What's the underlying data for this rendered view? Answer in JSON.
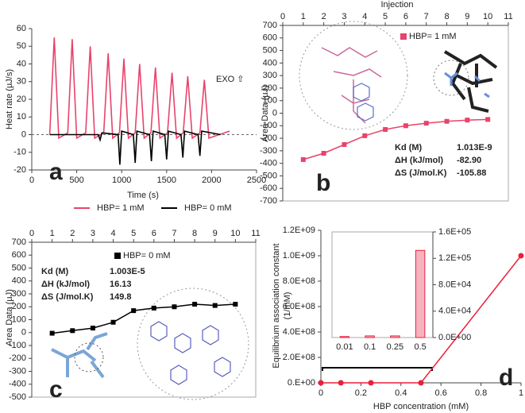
{
  "chart_data": [
    {
      "type": "line",
      "panel_label": "a",
      "x_label": "Time (s)",
      "y_label": "Heat rate (µJ/s)",
      "annotation": "EXO ⇧",
      "xlim": [
        0,
        2500
      ],
      "xticks": [
        0,
        500,
        1000,
        1500,
        2000,
        2500
      ],
      "ylim": [
        -20,
        60
      ],
      "yticks": [
        -20,
        -10,
        0,
        10,
        20,
        30,
        40,
        50,
        60
      ],
      "series": [
        {
          "name": "HBP= 1 mM",
          "color": "#e8436b",
          "x": [
            200,
            250,
            300,
            400,
            450,
            500,
            600,
            650,
            700,
            800,
            850,
            900,
            975,
            1025,
            1075,
            1150,
            1200,
            1250,
            1325,
            1375,
            1425,
            1510,
            1560,
            1610,
            1685,
            1735,
            1785,
            1870,
            1920,
            1970,
            2200
          ],
          "values": [
            0,
            55,
            -2,
            1,
            54,
            -2,
            1,
            50,
            -2,
            1,
            46,
            -2,
            1,
            43,
            -2,
            1,
            40,
            -2,
            1,
            38,
            -2,
            1,
            35,
            -2,
            1,
            33,
            -2,
            1,
            31,
            -2,
            2
          ]
        },
        {
          "name": "HBP= 0 mM",
          "color": "#000000",
          "x": [
            200,
            740,
            760,
            780,
            960,
            980,
            1000,
            1130,
            1150,
            1170,
            1310,
            1330,
            1350,
            1480,
            1500,
            1520,
            1660,
            1680,
            1700,
            1850,
            1870,
            1890,
            2100
          ],
          "values": [
            0,
            0,
            -3,
            1,
            0,
            -17,
            2,
            0,
            -16,
            2,
            0,
            -15,
            2,
            0,
            -14,
            2,
            0,
            -13,
            2,
            0,
            -12,
            2,
            0
          ]
        }
      ]
    },
    {
      "type": "scatter",
      "panel_label": "b",
      "x_label": "Injection",
      "y_label": "Area Data (µJ)",
      "x_axis_position": "top",
      "line": true,
      "xlim": [
        0,
        11
      ],
      "xticks": [
        0,
        1,
        2,
        3,
        4,
        5,
        6,
        7,
        8,
        9,
        10,
        11
      ],
      "ylim": [
        -700,
        700
      ],
      "yticks": [
        -700,
        -600,
        -500,
        -400,
        -300,
        -200,
        -100,
        0,
        100,
        200,
        300,
        400,
        500,
        600,
        700
      ],
      "series": [
        {
          "name": "HBP= 1 mM",
          "color": "#e8436b",
          "marker": "square",
          "x": [
            1,
            2,
            3,
            4,
            5,
            6,
            7,
            8,
            9,
            10
          ],
          "values": [
            -370,
            -320,
            -250,
            -180,
            -130,
            -100,
            -80,
            -65,
            -55,
            -50
          ]
        }
      ],
      "parameters": [
        [
          "Kd (M)",
          "1.013E-9"
        ],
        [
          "ΔH (kJ/mol)",
          "-82.90"
        ],
        [
          "ΔS (J/mol.K)",
          "-105.88"
        ]
      ]
    },
    {
      "type": "scatter",
      "panel_label": "c",
      "y_label": "Area Data (µJ)",
      "x_axis_position": "top",
      "line": true,
      "xlim": [
        0,
        11
      ],
      "xticks": [
        0,
        1,
        2,
        3,
        4,
        5,
        6,
        7,
        8,
        9,
        10,
        11
      ],
      "ylim": [
        -500,
        700
      ],
      "yticks": [
        -500,
        -400,
        -300,
        -200,
        -100,
        0,
        100,
        200,
        300,
        400,
        500,
        600,
        700
      ],
      "series": [
        {
          "name": "HBP= 0 mM",
          "color": "#000000",
          "marker": "square",
          "x": [
            1,
            2,
            3,
            4,
            5,
            6,
            7,
            8,
            9,
            10
          ],
          "values": [
            -5,
            15,
            35,
            80,
            170,
            190,
            200,
            220,
            210,
            220
          ]
        }
      ],
      "parameters": [
        [
          "Kd (M)",
          "1.003E-5"
        ],
        [
          "ΔH (kJ/mol)",
          "16.13"
        ],
        [
          "ΔS (J/mol.K)",
          "149.8"
        ]
      ]
    },
    {
      "type": "line",
      "panel_label": "d",
      "x_label": "HBP concentration (mM)",
      "y_label": [
        "Equilibrium association constant",
        "(1/mM)"
      ],
      "xlim": [
        0,
        1
      ],
      "xticks": [
        0,
        0.2,
        0.4,
        0.6,
        0.8,
        1
      ],
      "ylim": [
        0,
        1200000000
      ],
      "yticks": [
        {
          "value": 0,
          "label": "0.E+00"
        },
        {
          "value": 200000000,
          "label": "2.0E+08"
        },
        {
          "value": 400000000,
          "label": "4.0E+08"
        },
        {
          "value": 600000000,
          "label": "6.0E+08"
        },
        {
          "value": 800000000,
          "label": "8.0E+08"
        },
        {
          "value": 1000000000,
          "label": "1.0E+09"
        },
        {
          "value": 1200000000,
          "label": "1.2E+09"
        }
      ],
      "series": [
        {
          "color": "#e8203a",
          "marker": "circle",
          "x": [
            0,
            0.1,
            0.25,
            0.5,
            1
          ],
          "values": [
            0,
            0,
            0,
            0,
            1000000000
          ]
        }
      ]
    },
    {
      "type": "bar",
      "y_axis_position": "right",
      "categories": [
        "0.01",
        "0.1",
        "0.25",
        "0.5"
      ],
      "values": [
        1500,
        2500,
        2500,
        132000
      ],
      "color": "#f5b3c0",
      "edge_color": "#e8203a",
      "ylim": [
        0,
        160000
      ],
      "yticks": [
        {
          "value": 0,
          "label": "0.0E+00"
        },
        {
          "value": 40000,
          "label": "4.0E+04"
        },
        {
          "value": 80000,
          "label": "8.0E+04"
        },
        {
          "value": 120000,
          "label": "1.2E+05"
        },
        {
          "value": 160000,
          "label": "1.6E+05"
        }
      ]
    }
  ]
}
